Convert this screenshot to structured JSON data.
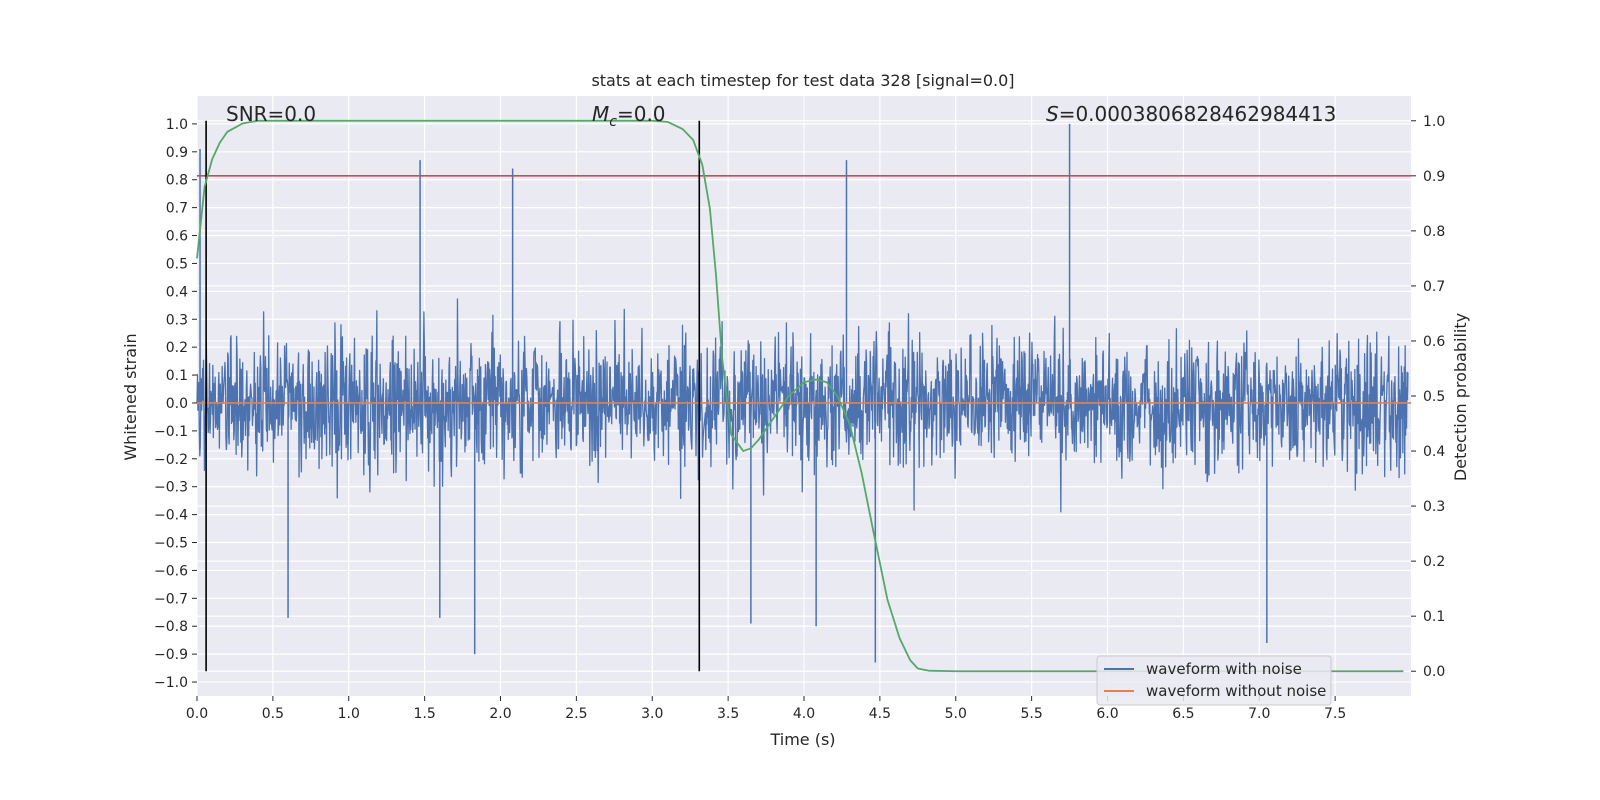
{
  "chart_data": {
    "type": "line",
    "title": "stats at each timestep for test data 328 [signal=0.0]",
    "xlabel": "Time (s)",
    "ylabel": "Whitened strain",
    "y2label": "Detection probability",
    "xlim": [
      0.0,
      8.0
    ],
    "ylim": [
      -1.05,
      1.1
    ],
    "y2lim": [
      -0.045,
      1.045
    ],
    "xticks": [
      "0.0",
      "0.5",
      "1.0",
      "1.5",
      "2.0",
      "2.5",
      "3.0",
      "3.5",
      "4.0",
      "4.5",
      "5.0",
      "5.5",
      "6.0",
      "6.5",
      "7.0",
      "7.5"
    ],
    "yticks": [
      "1.0",
      "0.9",
      "0.8",
      "0.7",
      "0.6",
      "0.5",
      "0.4",
      "0.3",
      "0.2",
      "0.1",
      "0.0",
      "−0.1",
      "−0.2",
      "−0.3",
      "−0.4",
      "−0.5",
      "−0.6",
      "−0.7",
      "−0.8",
      "−0.9",
      "−1.0"
    ],
    "y2ticks": [
      "1.0",
      "0.9",
      "0.8",
      "0.7",
      "0.6",
      "0.5",
      "0.4",
      "0.3",
      "0.2",
      "0.1",
      "0.0"
    ],
    "grid": true,
    "legend_position": "lower-right",
    "annotations": {
      "snr": "SNR=0.0",
      "mc": "M_c=0.0",
      "mc_base": "M",
      "mc_sub": "c",
      "mc_rest": "=0.0",
      "s": "S=0.0003806828462984413",
      "s_symbol": "S",
      "s_rest": "=0.0003806828462984413"
    },
    "series": [
      {
        "name": "waveform with noise",
        "color": "#4c72b0",
        "axis": "left",
        "description_range": [
          -0.93,
          1.0
        ],
        "spikes": [
          {
            "x": 0.02,
            "y": 0.91
          },
          {
            "x": 1.47,
            "y": 0.87
          },
          {
            "x": 2.08,
            "y": 0.84
          },
          {
            "x": 4.28,
            "y": 0.87
          },
          {
            "x": 5.75,
            "y": 1.0
          },
          {
            "x": 4.47,
            "y": -0.93
          },
          {
            "x": 1.83,
            "y": -0.9
          },
          {
            "x": 7.05,
            "y": -0.86
          },
          {
            "x": 4.08,
            "y": -0.8
          },
          {
            "x": 1.6,
            "y": -0.77
          },
          {
            "x": 0.6,
            "y": -0.77
          },
          {
            "x": 3.65,
            "y": -0.79
          }
        ]
      },
      {
        "name": "waveform without noise",
        "color": "#dd8452",
        "axis": "left",
        "x": [
          0.0,
          8.0
        ],
        "values": [
          0.0,
          0.0
        ]
      },
      {
        "name": "",
        "color": "#55a868",
        "axis": "right",
        "x": [
          0.0,
          0.05,
          0.1,
          0.15,
          0.2,
          0.3,
          0.4,
          0.5,
          3.0,
          3.1,
          3.2,
          3.27,
          3.33,
          3.38,
          3.42,
          3.46,
          3.52,
          3.6,
          3.65,
          3.7,
          3.8,
          3.9,
          4.0,
          4.08,
          4.15,
          4.22,
          4.3,
          4.38,
          4.46,
          4.55,
          4.63,
          4.7,
          4.75,
          4.82,
          5.0,
          7.95
        ],
        "values": [
          0.75,
          0.88,
          0.93,
          0.96,
          0.98,
          0.995,
          1.0,
          1.0,
          1.0,
          0.998,
          0.985,
          0.965,
          0.92,
          0.84,
          0.72,
          0.57,
          0.43,
          0.4,
          0.405,
          0.42,
          0.46,
          0.5,
          0.525,
          0.53,
          0.525,
          0.5,
          0.45,
          0.36,
          0.25,
          0.13,
          0.06,
          0.02,
          0.005,
          0.001,
          0.0,
          0.0
        ]
      }
    ],
    "reference_lines": {
      "red_horizontal": {
        "axis": "right",
        "y": 0.9,
        "color": "#c44e52"
      },
      "vertical_lines": [
        {
          "x": 0.06,
          "color": "#000000"
        },
        {
          "x": 3.31,
          "color": "#000000"
        }
      ]
    }
  }
}
